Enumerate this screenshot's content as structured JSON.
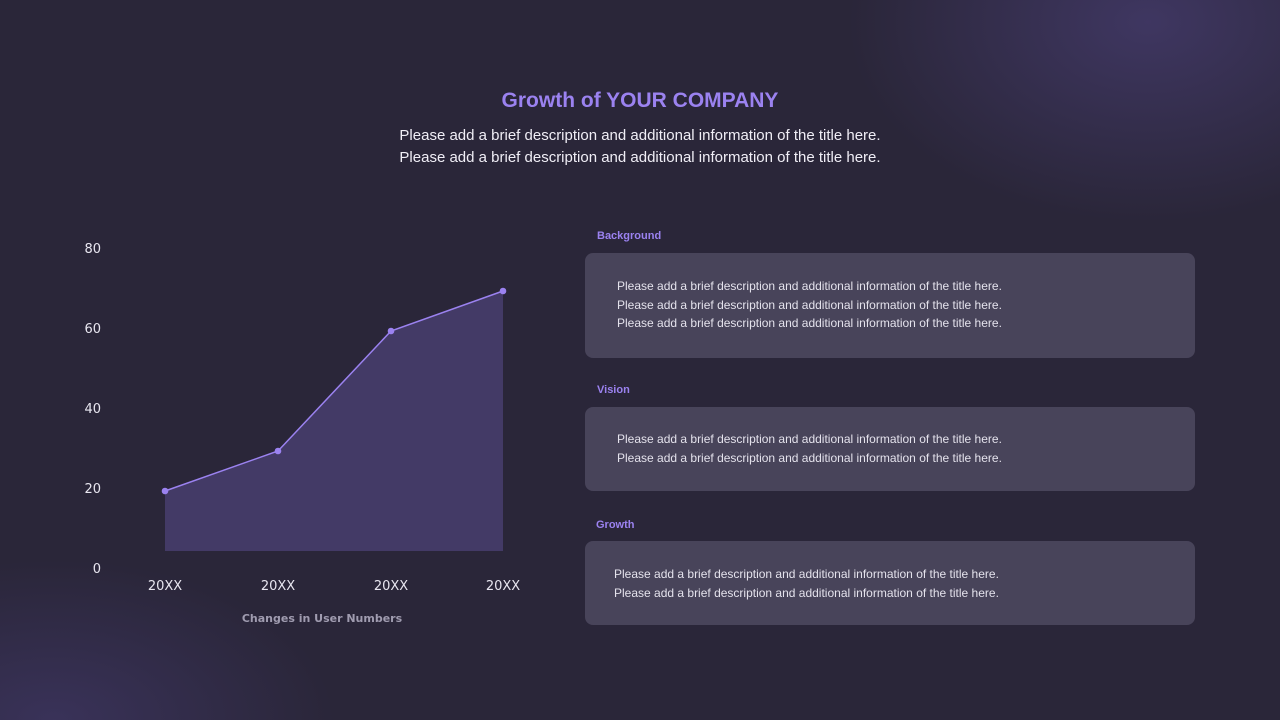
{
  "header": {
    "title": "Growth of YOUR COMPANY",
    "subtitle_lines": [
      "Please add a brief description and additional information of the title here.",
      "Please add a brief description and additional information of the title here."
    ]
  },
  "chart_data": {
    "type": "area",
    "categories": [
      "20XX",
      "20XX",
      "20XX",
      "20XX"
    ],
    "values": [
      20,
      30,
      60,
      70
    ],
    "xlabel": "Changes in User Numbers",
    "ylabel": "",
    "ylim": [
      0,
      80
    ],
    "yticks": [
      "0",
      "20",
      "40",
      "60",
      "80"
    ],
    "grid": false,
    "line_color": "#9b82f0",
    "fill_color": "#433a66"
  },
  "sections": [
    {
      "label": "Background",
      "lines": [
        "Please add a brief description and additional information of the title here.",
        "Please add a brief description and additional information of the title here.",
        "Please add a brief description and additional information of the title here."
      ]
    },
    {
      "label": "Vision",
      "lines": [
        "Please add a brief description and additional information of the title here.",
        "Please add a brief description and additional information of the title here."
      ]
    },
    {
      "label": "Growth",
      "lines": [
        "Please add a brief description and additional information of the title here.",
        "Please add a brief description and additional information of the title here."
      ]
    }
  ]
}
